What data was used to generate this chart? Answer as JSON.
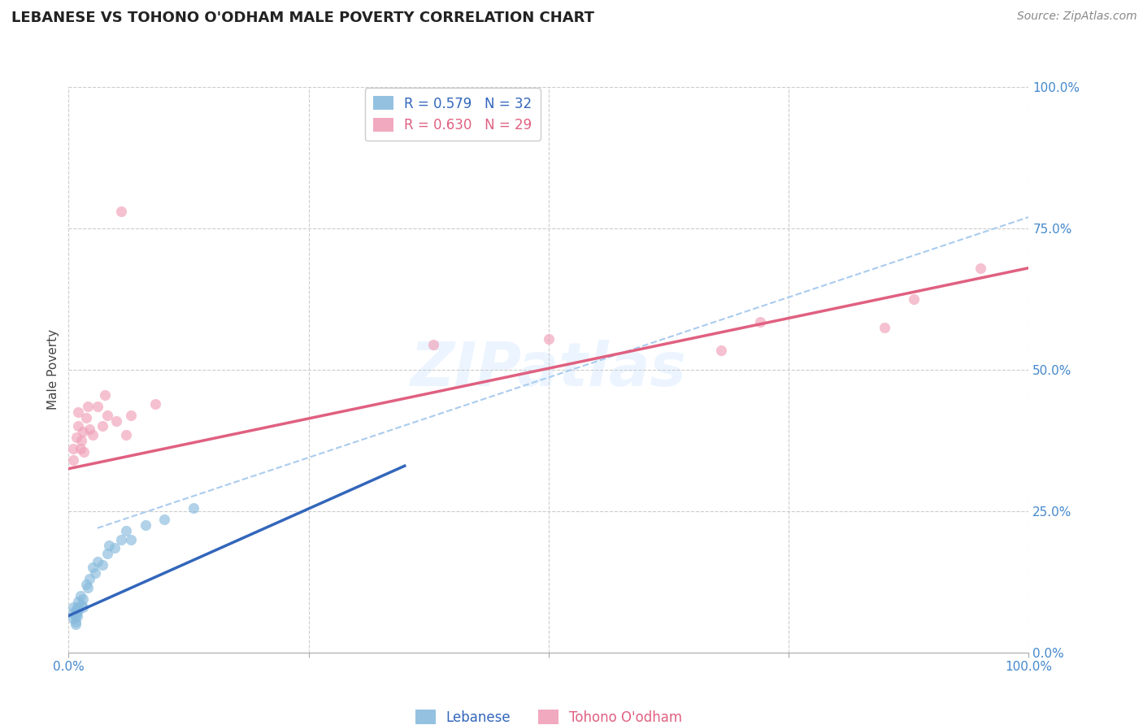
{
  "title": "LEBANESE VS TOHONO O'ODHAM MALE POVERTY CORRELATION CHART",
  "source": "Source: ZipAtlas.com",
  "ylabel": "Male Poverty",
  "xlim": [
    0,
    1
  ],
  "ylim": [
    0,
    1
  ],
  "lebanese_R": "0.579",
  "lebanese_N": "32",
  "tohono_R": "0.630",
  "tohono_N": "29",
  "lebanese_scatter": [
    [
      0.005,
      0.06
    ],
    [
      0.005,
      0.07
    ],
    [
      0.005,
      0.08
    ],
    [
      0.007,
      0.05
    ],
    [
      0.007,
      0.065
    ],
    [
      0.007,
      0.055
    ],
    [
      0.008,
      0.075
    ],
    [
      0.008,
      0.07
    ],
    [
      0.009,
      0.065
    ],
    [
      0.009,
      0.08
    ],
    [
      0.01,
      0.09
    ],
    [
      0.01,
      0.075
    ],
    [
      0.012,
      0.1
    ],
    [
      0.013,
      0.085
    ],
    [
      0.015,
      0.095
    ],
    [
      0.015,
      0.08
    ],
    [
      0.018,
      0.12
    ],
    [
      0.02,
      0.115
    ],
    [
      0.022,
      0.13
    ],
    [
      0.025,
      0.15
    ],
    [
      0.028,
      0.14
    ],
    [
      0.03,
      0.16
    ],
    [
      0.035,
      0.155
    ],
    [
      0.04,
      0.175
    ],
    [
      0.042,
      0.19
    ],
    [
      0.048,
      0.185
    ],
    [
      0.055,
      0.2
    ],
    [
      0.06,
      0.215
    ],
    [
      0.065,
      0.2
    ],
    [
      0.08,
      0.225
    ],
    [
      0.1,
      0.235
    ],
    [
      0.13,
      0.255
    ]
  ],
  "tohono_scatter": [
    [
      0.005,
      0.34
    ],
    [
      0.005,
      0.36
    ],
    [
      0.008,
      0.38
    ],
    [
      0.01,
      0.4
    ],
    [
      0.01,
      0.425
    ],
    [
      0.012,
      0.36
    ],
    [
      0.013,
      0.375
    ],
    [
      0.015,
      0.39
    ],
    [
      0.016,
      0.355
    ],
    [
      0.018,
      0.415
    ],
    [
      0.02,
      0.435
    ],
    [
      0.022,
      0.395
    ],
    [
      0.025,
      0.385
    ],
    [
      0.03,
      0.435
    ],
    [
      0.035,
      0.4
    ],
    [
      0.038,
      0.455
    ],
    [
      0.04,
      0.42
    ],
    [
      0.05,
      0.41
    ],
    [
      0.055,
      0.78
    ],
    [
      0.06,
      0.385
    ],
    [
      0.065,
      0.42
    ],
    [
      0.09,
      0.44
    ],
    [
      0.38,
      0.545
    ],
    [
      0.5,
      0.555
    ],
    [
      0.68,
      0.535
    ],
    [
      0.72,
      0.585
    ],
    [
      0.85,
      0.575
    ],
    [
      0.88,
      0.625
    ],
    [
      0.95,
      0.68
    ]
  ],
  "lebanese_line": [
    0.0,
    0.065,
    0.35,
    0.33
  ],
  "tohono_line": [
    0.0,
    0.325,
    1.0,
    0.68
  ],
  "dashed_line": [
    0.03,
    0.22,
    1.0,
    0.77
  ],
  "lebanese_line_color": "#3366bb",
  "tohono_line_color": "#e06080",
  "dashed_line_color": "#aaccee",
  "scatter_blue": "#88bbdd",
  "scatter_pink": "#f0a0b8",
  "scatter_alpha": 0.65,
  "scatter_size": 90,
  "background_color": "#ffffff",
  "grid_color": "#cccccc",
  "title_fontsize": 13,
  "axis_label_fontsize": 11,
  "tick_fontsize": 11,
  "legend_fontsize": 12,
  "source_fontsize": 10
}
